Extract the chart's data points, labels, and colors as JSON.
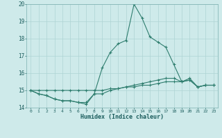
{
  "x": [
    0,
    1,
    2,
    3,
    4,
    5,
    6,
    7,
    8,
    9,
    10,
    11,
    12,
    13,
    14,
    15,
    16,
    17,
    18,
    19,
    20,
    21,
    22,
    23
  ],
  "line1": [
    15.0,
    14.8,
    14.7,
    14.5,
    14.4,
    14.4,
    14.3,
    14.2,
    14.8,
    16.3,
    17.2,
    17.7,
    17.9,
    20.0,
    19.2,
    18.1,
    17.8,
    17.5,
    16.5,
    15.5,
    15.7,
    15.2,
    15.3,
    15.3
  ],
  "line2": [
    15.0,
    14.8,
    14.7,
    14.5,
    14.4,
    14.4,
    14.3,
    14.3,
    14.8,
    14.8,
    15.0,
    15.1,
    15.2,
    15.3,
    15.4,
    15.5,
    15.6,
    15.7,
    15.7,
    15.5,
    15.6,
    15.2,
    15.3,
    15.3
  ],
  "line3": [
    15.0,
    15.0,
    15.0,
    15.0,
    15.0,
    15.0,
    15.0,
    15.0,
    15.0,
    15.0,
    15.1,
    15.1,
    15.2,
    15.2,
    15.3,
    15.3,
    15.4,
    15.5,
    15.5,
    15.5,
    15.6,
    15.2,
    15.3,
    15.3
  ],
  "color": "#2e7d6e",
  "bg_color": "#ceeaea",
  "grid_color": "#add4d4",
  "xlabel": "Humidex (Indice chaleur)",
  "ylim": [
    14.0,
    20.0
  ],
  "xlim": [
    -0.5,
    23.5
  ],
  "yticks": [
    14,
    15,
    16,
    17,
    18,
    19,
    20
  ],
  "xticks": [
    0,
    1,
    2,
    3,
    4,
    5,
    6,
    7,
    8,
    9,
    10,
    11,
    12,
    13,
    14,
    15,
    16,
    17,
    18,
    19,
    20,
    21,
    22,
    23
  ]
}
